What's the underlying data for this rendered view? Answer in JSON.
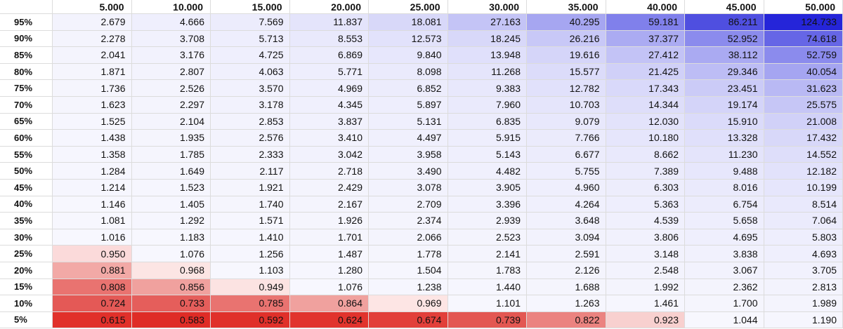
{
  "table": {
    "columns": [
      "5.000",
      "10.000",
      "15.000",
      "20.000",
      "25.000",
      "30.000",
      "35.000",
      "40.000",
      "45.000",
      "50.000"
    ],
    "rows": [
      {
        "label": "95%",
        "cells": [
          {
            "v": "2.679",
            "bg": "#f3f3fd"
          },
          {
            "v": "4.666",
            "bg": "#efeffd"
          },
          {
            "v": "7.569",
            "bg": "#ececfc"
          },
          {
            "v": "11.837",
            "bg": "#e4e4fb"
          },
          {
            "v": "18.081",
            "bg": "#d8d8f9"
          },
          {
            "v": "27.163",
            "bg": "#c4c4f6"
          },
          {
            "v": "40.295",
            "bg": "#a6a6f1"
          },
          {
            "v": "59.181",
            "bg": "#8080eb"
          },
          {
            "v": "86.211",
            "bg": "#4f4fe0"
          },
          {
            "v": "124.733",
            "bg": "#2525d9"
          }
        ]
      },
      {
        "label": "90%",
        "cells": [
          {
            "v": "2.278",
            "bg": "#f4f4fd"
          },
          {
            "v": "3.708",
            "bg": "#f1f1fd"
          },
          {
            "v": "5.713",
            "bg": "#eeeefd"
          },
          {
            "v": "8.553",
            "bg": "#e9e9fc"
          },
          {
            "v": "12.573",
            "bg": "#e2e2fb"
          },
          {
            "v": "18.245",
            "bg": "#d8d8f9"
          },
          {
            "v": "26.216",
            "bg": "#c8c8f7"
          },
          {
            "v": "37.377",
            "bg": "#ababf2"
          },
          {
            "v": "52.952",
            "bg": "#8b8bed"
          },
          {
            "v": "74.618",
            "bg": "#6666e6"
          }
        ]
      },
      {
        "label": "85%",
        "cells": [
          {
            "v": "2.041",
            "bg": "#f4f4fd"
          },
          {
            "v": "3.176",
            "bg": "#f2f2fd"
          },
          {
            "v": "4.725",
            "bg": "#efeffd"
          },
          {
            "v": "6.869",
            "bg": "#ececfc"
          },
          {
            "v": "9.840",
            "bg": "#e7e7fc"
          },
          {
            "v": "13.948",
            "bg": "#e0e0fb"
          },
          {
            "v": "19.616",
            "bg": "#d5d5f9"
          },
          {
            "v": "27.412",
            "bg": "#c3c3f6"
          },
          {
            "v": "38.112",
            "bg": "#aaaaf2"
          },
          {
            "v": "52.759",
            "bg": "#8b8bed"
          }
        ]
      },
      {
        "label": "80%",
        "cells": [
          {
            "v": "1.871",
            "bg": "#f5f5fd"
          },
          {
            "v": "2.807",
            "bg": "#f3f3fd"
          },
          {
            "v": "4.063",
            "bg": "#f0f0fd"
          },
          {
            "v": "5.771",
            "bg": "#eeeefd"
          },
          {
            "v": "8.098",
            "bg": "#eaeafc"
          },
          {
            "v": "11.268",
            "bg": "#e5e5fb"
          },
          {
            "v": "15.577",
            "bg": "#dcdcfa"
          },
          {
            "v": "21.425",
            "bg": "#d0d0f8"
          },
          {
            "v": "29.346",
            "bg": "#bdbdf5"
          },
          {
            "v": "40.054",
            "bg": "#a5a5f1"
          }
        ]
      },
      {
        "label": "75%",
        "cells": [
          {
            "v": "1.736",
            "bg": "#f5f5fd"
          },
          {
            "v": "2.526",
            "bg": "#f4f4fd"
          },
          {
            "v": "3.570",
            "bg": "#f1f1fd"
          },
          {
            "v": "4.969",
            "bg": "#efeffd"
          },
          {
            "v": "6.852",
            "bg": "#ececfc"
          },
          {
            "v": "9.383",
            "bg": "#e8e8fc"
          },
          {
            "v": "12.782",
            "bg": "#e1e1fb"
          },
          {
            "v": "17.343",
            "bg": "#d9d9fa"
          },
          {
            "v": "23.451",
            "bg": "#cbcbf7"
          },
          {
            "v": "31.623",
            "bg": "#b9b9f4"
          }
        ]
      },
      {
        "label": "70%",
        "cells": [
          {
            "v": "1.623",
            "bg": "#f5f5fd"
          },
          {
            "v": "2.297",
            "bg": "#f4f4fd"
          },
          {
            "v": "3.178",
            "bg": "#f2f2fd"
          },
          {
            "v": "4.345",
            "bg": "#f0f0fd"
          },
          {
            "v": "5.897",
            "bg": "#eeeefd"
          },
          {
            "v": "7.960",
            "bg": "#eaeafc"
          },
          {
            "v": "10.703",
            "bg": "#e5e5fb"
          },
          {
            "v": "14.344",
            "bg": "#dedefa"
          },
          {
            "v": "19.174",
            "bg": "#d4d4f9"
          },
          {
            "v": "25.575",
            "bg": "#c6c6f6"
          }
        ]
      },
      {
        "label": "65%",
        "cells": [
          {
            "v": "1.525",
            "bg": "#f6f6fe"
          },
          {
            "v": "2.104",
            "bg": "#f4f4fd"
          },
          {
            "v": "2.853",
            "bg": "#f3f3fd"
          },
          {
            "v": "3.837",
            "bg": "#f1f1fd"
          },
          {
            "v": "5.131",
            "bg": "#efeffd"
          },
          {
            "v": "6.835",
            "bg": "#ececfc"
          },
          {
            "v": "9.079",
            "bg": "#e8e8fc"
          },
          {
            "v": "12.030",
            "bg": "#e3e3fb"
          },
          {
            "v": "15.910",
            "bg": "#dbdbfa"
          },
          {
            "v": "21.008",
            "bg": "#d1d1f8"
          }
        ]
      },
      {
        "label": "60%",
        "cells": [
          {
            "v": "1.438",
            "bg": "#f6f6fe"
          },
          {
            "v": "1.935",
            "bg": "#f5f5fd"
          },
          {
            "v": "2.576",
            "bg": "#f3f3fd"
          },
          {
            "v": "3.410",
            "bg": "#f2f2fd"
          },
          {
            "v": "4.497",
            "bg": "#f0f0fd"
          },
          {
            "v": "5.915",
            "bg": "#eeeefd"
          },
          {
            "v": "7.766",
            "bg": "#ebebfc"
          },
          {
            "v": "10.180",
            "bg": "#e6e6fc"
          },
          {
            "v": "13.328",
            "bg": "#e0e0fb"
          },
          {
            "v": "17.432",
            "bg": "#d8d8f9"
          }
        ]
      },
      {
        "label": "55%",
        "cells": [
          {
            "v": "1.358",
            "bg": "#f6f6fe"
          },
          {
            "v": "1.785",
            "bg": "#f5f5fd"
          },
          {
            "v": "2.333",
            "bg": "#f4f4fd"
          },
          {
            "v": "3.042",
            "bg": "#f2f2fd"
          },
          {
            "v": "3.958",
            "bg": "#f1f1fd"
          },
          {
            "v": "5.143",
            "bg": "#efeffd"
          },
          {
            "v": "6.677",
            "bg": "#ececfc"
          },
          {
            "v": "8.662",
            "bg": "#e9e9fc"
          },
          {
            "v": "11.230",
            "bg": "#e4e4fb"
          },
          {
            "v": "14.552",
            "bg": "#dedefa"
          }
        ]
      },
      {
        "label": "50%",
        "cells": [
          {
            "v": "1.284",
            "bg": "#f6f6fe"
          },
          {
            "v": "1.649",
            "bg": "#f5f5fd"
          },
          {
            "v": "2.117",
            "bg": "#f4f4fd"
          },
          {
            "v": "2.718",
            "bg": "#f3f3fd"
          },
          {
            "v": "3.490",
            "bg": "#f2f2fd"
          },
          {
            "v": "4.482",
            "bg": "#f0f0fd"
          },
          {
            "v": "5.755",
            "bg": "#eeeefd"
          },
          {
            "v": "7.389",
            "bg": "#ebebfc"
          },
          {
            "v": "9.488",
            "bg": "#e7e7fc"
          },
          {
            "v": "12.182",
            "bg": "#e2e2fb"
          }
        ]
      },
      {
        "label": "45%",
        "cells": [
          {
            "v": "1.214",
            "bg": "#f6f6fe"
          },
          {
            "v": "1.523",
            "bg": "#f6f6fe"
          },
          {
            "v": "1.921",
            "bg": "#f5f5fd"
          },
          {
            "v": "2.429",
            "bg": "#f4f4fd"
          },
          {
            "v": "3.078",
            "bg": "#f2f2fd"
          },
          {
            "v": "3.905",
            "bg": "#f1f1fd"
          },
          {
            "v": "4.960",
            "bg": "#efeffd"
          },
          {
            "v": "6.303",
            "bg": "#ededfc"
          },
          {
            "v": "8.016",
            "bg": "#eaeafc"
          },
          {
            "v": "10.199",
            "bg": "#e6e6fc"
          }
        ]
      },
      {
        "label": "40%",
        "cells": [
          {
            "v": "1.146",
            "bg": "#f7f7fe"
          },
          {
            "v": "1.405",
            "bg": "#f6f6fe"
          },
          {
            "v": "1.740",
            "bg": "#f5f5fd"
          },
          {
            "v": "2.167",
            "bg": "#f4f4fd"
          },
          {
            "v": "2.709",
            "bg": "#f3f3fd"
          },
          {
            "v": "3.396",
            "bg": "#f2f2fd"
          },
          {
            "v": "4.264",
            "bg": "#f0f0fd"
          },
          {
            "v": "5.363",
            "bg": "#eeeefd"
          },
          {
            "v": "6.754",
            "bg": "#ececfc"
          },
          {
            "v": "8.514",
            "bg": "#e9e9fc"
          }
        ]
      },
      {
        "label": "35%",
        "cells": [
          {
            "v": "1.081",
            "bg": "#f7f7fe"
          },
          {
            "v": "1.292",
            "bg": "#f6f6fe"
          },
          {
            "v": "1.571",
            "bg": "#f6f6fe"
          },
          {
            "v": "1.926",
            "bg": "#f5f5fd"
          },
          {
            "v": "2.374",
            "bg": "#f4f4fd"
          },
          {
            "v": "2.939",
            "bg": "#f3f3fd"
          },
          {
            "v": "3.648",
            "bg": "#f1f1fd"
          },
          {
            "v": "4.539",
            "bg": "#f0f0fd"
          },
          {
            "v": "5.658",
            "bg": "#eeeefd"
          },
          {
            "v": "7.064",
            "bg": "#ebebfc"
          }
        ]
      },
      {
        "label": "30%",
        "cells": [
          {
            "v": "1.016",
            "bg": "#f7f7fe"
          },
          {
            "v": "1.183",
            "bg": "#f7f7fe"
          },
          {
            "v": "1.410",
            "bg": "#f6f6fe"
          },
          {
            "v": "1.701",
            "bg": "#f5f5fd"
          },
          {
            "v": "2.066",
            "bg": "#f4f4fd"
          },
          {
            "v": "2.523",
            "bg": "#f4f4fd"
          },
          {
            "v": "3.094",
            "bg": "#f2f2fd"
          },
          {
            "v": "3.806",
            "bg": "#f1f1fd"
          },
          {
            "v": "4.695",
            "bg": "#efeffd"
          },
          {
            "v": "5.803",
            "bg": "#eeeefd"
          }
        ]
      },
      {
        "label": "25%",
        "cells": [
          {
            "v": "0.950",
            "bg": "#fbdada"
          },
          {
            "v": "1.076",
            "bg": "#f7f7fe"
          },
          {
            "v": "1.256",
            "bg": "#f6f6fe"
          },
          {
            "v": "1.487",
            "bg": "#f6f6fe"
          },
          {
            "v": "1.778",
            "bg": "#f5f5fd"
          },
          {
            "v": "2.141",
            "bg": "#f4f4fd"
          },
          {
            "v": "2.591",
            "bg": "#f3f3fd"
          },
          {
            "v": "3.148",
            "bg": "#f2f2fd"
          },
          {
            "v": "3.838",
            "bg": "#f1f1fd"
          },
          {
            "v": "4.693",
            "bg": "#efeffd"
          }
        ]
      },
      {
        "label": "20%",
        "cells": [
          {
            "v": "0.881",
            "bg": "#f2a9a6"
          },
          {
            "v": "0.968",
            "bg": "#fce5e4"
          },
          {
            "v": "1.103",
            "bg": "#f7f7fe"
          },
          {
            "v": "1.280",
            "bg": "#f6f6fe"
          },
          {
            "v": "1.504",
            "bg": "#f6f6fe"
          },
          {
            "v": "1.783",
            "bg": "#f5f5fd"
          },
          {
            "v": "2.126",
            "bg": "#f4f4fd"
          },
          {
            "v": "2.548",
            "bg": "#f3f3fd"
          },
          {
            "v": "3.067",
            "bg": "#f2f2fd"
          },
          {
            "v": "3.705",
            "bg": "#f1f1fd"
          }
        ]
      },
      {
        "label": "15%",
        "cells": [
          {
            "v": "0.808",
            "bg": "#e97370"
          },
          {
            "v": "0.856",
            "bg": "#f0a19e"
          },
          {
            "v": "0.949",
            "bg": "#fce3e2"
          },
          {
            "v": "1.076",
            "bg": "#f7f7fe"
          },
          {
            "v": "1.238",
            "bg": "#f6f6fe"
          },
          {
            "v": "1.440",
            "bg": "#f6f6fe"
          },
          {
            "v": "1.688",
            "bg": "#f5f5fd"
          },
          {
            "v": "1.992",
            "bg": "#f4f4fd"
          },
          {
            "v": "2.362",
            "bg": "#f4f4fd"
          },
          {
            "v": "2.813",
            "bg": "#f3f3fd"
          }
        ]
      },
      {
        "label": "10%",
        "cells": [
          {
            "v": "0.724",
            "bg": "#e45956"
          },
          {
            "v": "0.733",
            "bg": "#e55e5b"
          },
          {
            "v": "0.785",
            "bg": "#e97370"
          },
          {
            "v": "0.864",
            "bg": "#f0a19e"
          },
          {
            "v": "0.969",
            "bg": "#fde5e4"
          },
          {
            "v": "1.101",
            "bg": "#f7f7fe"
          },
          {
            "v": "1.263",
            "bg": "#f6f6fe"
          },
          {
            "v": "1.461",
            "bg": "#f6f6fe"
          },
          {
            "v": "1.700",
            "bg": "#f5f5fd"
          },
          {
            "v": "1.989",
            "bg": "#f4f4fd"
          }
        ]
      },
      {
        "label": "5%",
        "cells": [
          {
            "v": "0.615",
            "bg": "#e1302a"
          },
          {
            "v": "0.583",
            "bg": "#df2c26"
          },
          {
            "v": "0.592",
            "bg": "#e0302a"
          },
          {
            "v": "0.624",
            "bg": "#e1332d"
          },
          {
            "v": "0.674",
            "bg": "#e23f3a"
          },
          {
            "v": "0.739",
            "bg": "#e35752"
          },
          {
            "v": "0.822",
            "bg": "#eb8380"
          },
          {
            "v": "0.923",
            "bg": "#f8d0cf"
          },
          {
            "v": "1.044",
            "bg": "#f7f7fe"
          },
          {
            "v": "1.190",
            "bg": "#f6f6fe"
          }
        ]
      }
    ]
  }
}
